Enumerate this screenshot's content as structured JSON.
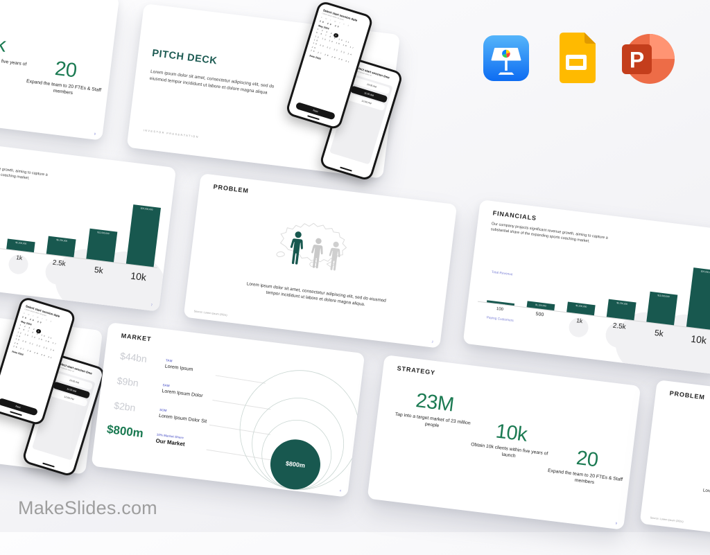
{
  "brand": "MakeSlides.com",
  "colors": {
    "teal": "#18584F",
    "green": "#1B7A52",
    "purple": "#7B80D6"
  },
  "app_icons": {
    "keynote": "Keynote",
    "google_slides": "Google Slides",
    "powerpoint": "PowerPoint"
  },
  "slides": {
    "pitch": {
      "title": "PITCH DECK",
      "body": "Lorem ipsum dolor sit amet, consectetur adipiscing elit, sed do eiusmod tempor incididunt ut labore et dolore magna aliqua",
      "footer": "INVESTOR PRESENTATION",
      "phone_date": {
        "header": "Select start session date",
        "sub": "Lorem ipsum dolor sit amet",
        "weekdays": "S M T W T F S",
        "trailing_days": "28 29 30",
        "month1": "May 2024",
        "weeks": [
          "1 2 3 4",
          "5 6 7 8 9 10 11",
          "12 13 14 15 16 17 18",
          "19 20 21 22 23 24 25",
          "26 27 28 29 30 31"
        ],
        "selected_day": "1",
        "month2": "June 2024",
        "button": "Next"
      },
      "phone_time": {
        "header": "Select start session time",
        "sub": "Lorem ipsum dolor sit",
        "options": [
          "10:00 AM",
          "11:00 AM",
          "12:00 PM"
        ]
      }
    },
    "problem": {
      "title": "PROBLEM",
      "body": "Lorem ipsum dolor sit amet, consectetur adipiscing elit, sed do eiusmod tempor incididunt ut labore et dolore magna aliqua.",
      "source": "Source: Lorem Ipsum (2024)",
      "page": "2"
    },
    "market": {
      "title": "MARKET",
      "rows": [
        {
          "value": "$44bn",
          "tag": "TAM",
          "label": "Lorem Ipsum"
        },
        {
          "value": "$9bn",
          "tag": "SAM",
          "label": "Lorem Ipsum Dolor"
        },
        {
          "value": "$2bn",
          "tag": "SOM",
          "label": "Lorem Ipsum Dolor Sit"
        },
        {
          "value": "$800m",
          "tag": "10% Market Share",
          "label": "Our Market"
        }
      ],
      "bubble": "$800m",
      "page": "4"
    },
    "financials": {
      "title": "FINANCIALS",
      "body": "Our company projects significant revenue growth, aiming to capture a substantial share of the expanding sports coaching market.",
      "y_axis": "Total Revenue",
      "x_axis": "Paying Customers",
      "page": "7"
    },
    "strategy": {
      "title": "STRATEGY",
      "stats": [
        {
          "value": "23M",
          "caption": "Tap into a target market of 23 million people"
        },
        {
          "value": "10k",
          "caption": "Obtain 10k clients within five years of launch"
        },
        {
          "value": "20",
          "caption": "Expand the team to 20 FTEs & Staff members"
        }
      ],
      "page": "9"
    }
  },
  "chart_data": {
    "type": "bar",
    "title": "Financials — Total Revenue by Paying Customers",
    "categories": [
      "100",
      "500",
      "1k",
      "2.5k",
      "5k",
      "10k"
    ],
    "values": [
      230000,
      1150000,
      2300000,
      5750000,
      11500000,
      23000000
    ],
    "value_labels": [
      "$230,000",
      "$1,150,000",
      "$2,300,000",
      "$5,750,000",
      "$11,500,000",
      "$23,000,000"
    ],
    "xlabel": "Paying Customers",
    "ylabel": "Total Revenue",
    "legend": false
  }
}
